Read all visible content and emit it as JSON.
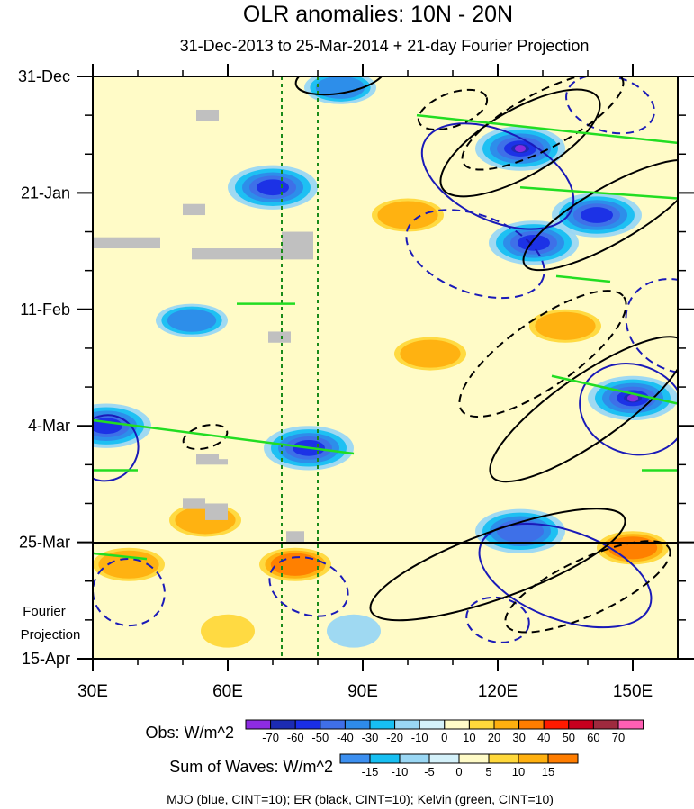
{
  "chart_data": {
    "type": "heatmap",
    "title": "OLR anomalies: 10N - 20N",
    "subtitle": "31-Dec-2013 to 25-Mar-2014 + 21-day Fourier Projection",
    "y_axis": {
      "ticks": [
        "31-Dec",
        "21-Jan",
        "11-Feb",
        "4-Mar",
        "25-Mar",
        "15-Apr"
      ],
      "day_values": [
        0,
        21,
        42,
        63,
        84,
        105
      ],
      "range_days": [
        0,
        105
      ]
    },
    "x_axis": {
      "ticks": [
        "30E",
        "60E",
        "90E",
        "120E",
        "150E"
      ],
      "values": [
        30,
        60,
        90,
        120,
        150
      ],
      "range": [
        30,
        160
      ]
    },
    "projection_label_1": "Fourier",
    "projection_label_2": "Projection",
    "projection_start_day": 84,
    "reference_longitudes_dotted": [
      72,
      80
    ],
    "obs_colorbar": {
      "label": "Obs: W/m^2",
      "levels": [
        "-70",
        "-60",
        "-50",
        "-40",
        "-30",
        "-20",
        "-10",
        "0",
        "10",
        "20",
        "30",
        "40",
        "50",
        "60",
        "70"
      ],
      "colors": [
        "#8d2be2",
        "#1c2bb3",
        "#1a2ee6",
        "#3f6fe8",
        "#2e8be9",
        "#17bff2",
        "#9ad7f4",
        "#d4f1fa",
        "#fffbc7",
        "#ffd83b",
        "#ffb00f",
        "#ff7d00",
        "#ff1a00",
        "#c8001e",
        "#9e2a3e",
        "#ff5fb4"
      ]
    },
    "waves_colorbar": {
      "label": "Sum of Waves: W/m^2",
      "levels": [
        "-15",
        "-10",
        "-5",
        "0",
        "5",
        "10",
        "15"
      ],
      "colors": [
        "#3c8ff0",
        "#17bff2",
        "#9ad7f4",
        "#d4f1fa",
        "#fffbc7",
        "#ffd83b",
        "#ffb00f",
        "#ff7d00"
      ]
    },
    "legend_note": "MJO (blue, CINT=10); ER (black, CINT=10); Kelvin (green, CINT=10)",
    "background_field_note": "Hovmoller diagram of observed OLR anomalies with overlaid MJO, ER and Kelvin wave filtered contours",
    "anomaly_features": [
      {
        "lon": 125,
        "day": 13,
        "value": -70
      },
      {
        "lon": 150,
        "day": 58,
        "value": -70
      },
      {
        "lon": 128,
        "day": 30,
        "value": -50
      },
      {
        "lon": 142,
        "day": 25,
        "value": -50
      },
      {
        "lon": 125,
        "day": 82,
        "value": -40
      },
      {
        "lon": 78,
        "day": 67,
        "value": -50
      },
      {
        "lon": 33,
        "day": 63,
        "value": -50
      },
      {
        "lon": 70,
        "day": 20,
        "value": -50
      },
      {
        "lon": 52,
        "day": 44,
        "value": -30
      },
      {
        "lon": 85,
        "day": 2,
        "value": -30
      },
      {
        "lon": 105,
        "day": 50,
        "value": 20
      },
      {
        "lon": 100,
        "day": 25,
        "value": 20
      },
      {
        "lon": 75,
        "day": 88,
        "value": 30
      },
      {
        "lon": 150,
        "day": 85,
        "value": 30
      },
      {
        "lon": 55,
        "day": 80,
        "value": 20
      },
      {
        "lon": 135,
        "day": 45,
        "value": 20
      },
      {
        "lon": 88,
        "day": 100,
        "value": -10
      },
      {
        "lon": 60,
        "day": 100,
        "value": 10
      },
      {
        "lon": 38,
        "day": 88,
        "value": 20
      }
    ],
    "missing_blocks": [
      {
        "lon": [
          30,
          45
        ],
        "day": [
          29,
          31
        ]
      },
      {
        "lon": [
          52,
          72
        ],
        "day": [
          31,
          33
        ]
      },
      {
        "lon": [
          72,
          79
        ],
        "day": [
          28,
          33
        ]
      },
      {
        "lon": [
          53,
          58
        ],
        "day": [
          6,
          8
        ]
      },
      {
        "lon": [
          50,
          55
        ],
        "day": [
          23,
          25
        ]
      },
      {
        "lon": [
          69,
          74
        ],
        "day": [
          46,
          48
        ]
      },
      {
        "lon": [
          53,
          58
        ],
        "day": [
          68,
          70
        ]
      },
      {
        "lon": [
          58,
          60
        ],
        "day": [
          69,
          70
        ]
      },
      {
        "lon": [
          50,
          55
        ],
        "day": [
          76,
          78
        ]
      },
      {
        "lon": [
          55,
          60
        ],
        "day": [
          77,
          80
        ]
      },
      {
        "lon": [
          73,
          77
        ],
        "day": [
          82,
          84
        ]
      }
    ],
    "mjo_contours": [
      {
        "lon": 33,
        "day": 67,
        "rx": 7,
        "ry": 6,
        "rot": 30,
        "dash": false
      },
      {
        "lon": 120,
        "day": 18,
        "rx": 18,
        "ry": 8,
        "rot": 25,
        "dash": false
      },
      {
        "lon": 135,
        "day": 90,
        "rx": 20,
        "ry": 8,
        "rot": 20,
        "dash": false
      },
      {
        "lon": 145,
        "day": 5,
        "rx": 10,
        "ry": 5,
        "rot": 15,
        "dash": true
      },
      {
        "lon": 115,
        "day": 32,
        "rx": 16,
        "ry": 7,
        "rot": 20,
        "dash": true
      },
      {
        "lon": 160,
        "day": 45,
        "rx": 12,
        "ry": 8,
        "rot": 30,
        "dash": true
      },
      {
        "lon": 38,
        "day": 93,
        "rx": 8,
        "ry": 6,
        "rot": 10,
        "dash": true
      },
      {
        "lon": 78,
        "day": 92,
        "rx": 9,
        "ry": 5,
        "rot": 20,
        "dash": true
      },
      {
        "lon": 120,
        "day": 98,
        "rx": 7,
        "ry": 4,
        "rot": 10,
        "dash": true
      },
      {
        "lon": 150,
        "day": 60,
        "rx": 12,
        "ry": 8,
        "rot": 20,
        "dash": false
      }
    ],
    "er_contours": [
      {
        "lon": 125,
        "day": 12,
        "rx": 20,
        "ry": 6,
        "rot": -30,
        "dash": false
      },
      {
        "lon": 145,
        "day": 25,
        "rx": 22,
        "ry": 5,
        "rot": -30,
        "dash": false
      },
      {
        "lon": 130,
        "day": 8,
        "rx": 20,
        "ry": 5,
        "rot": -28,
        "dash": true
      },
      {
        "lon": 140,
        "day": 60,
        "rx": 26,
        "ry": 6,
        "rot": -35,
        "dash": false
      },
      {
        "lon": 130,
        "day": 50,
        "rx": 22,
        "ry": 6,
        "rot": -35,
        "dash": true
      },
      {
        "lon": 120,
        "day": 88,
        "rx": 30,
        "ry": 6,
        "rot": -20,
        "dash": false
      },
      {
        "lon": 140,
        "day": 92,
        "rx": 20,
        "ry": 5,
        "rot": -25,
        "dash": true
      },
      {
        "lon": 85,
        "day": 0,
        "rx": 10,
        "ry": 3,
        "rot": -10,
        "dash": false
      },
      {
        "lon": 55,
        "day": 65,
        "rx": 5,
        "ry": 2,
        "rot": -15,
        "dash": true
      },
      {
        "lon": 110,
        "day": 6,
        "rx": 8,
        "ry": 3,
        "rot": -20,
        "dash": true
      }
    ],
    "kelvin_contours": [
      {
        "lon1": 102,
        "day1": 7,
        "lon2": 160,
        "day2": 12
      },
      {
        "lon1": 125,
        "day1": 20,
        "lon2": 160,
        "day2": 22
      },
      {
        "lon1": 30,
        "day1": 62,
        "lon2": 88,
        "day2": 68
      },
      {
        "lon1": 30,
        "day1": 71,
        "lon2": 40,
        "day2": 71
      },
      {
        "lon1": 132,
        "day1": 54,
        "lon2": 160,
        "day2": 59
      },
      {
        "lon1": 30,
        "day1": 86,
        "lon2": 42,
        "day2": 87
      },
      {
        "lon1": 62,
        "day1": 41,
        "lon2": 75,
        "day2": 41
      },
      {
        "lon1": 152,
        "day1": 71,
        "lon2": 160,
        "day2": 71
      },
      {
        "lon1": 133,
        "day1": 36,
        "lon2": 145,
        "day2": 37
      }
    ]
  }
}
